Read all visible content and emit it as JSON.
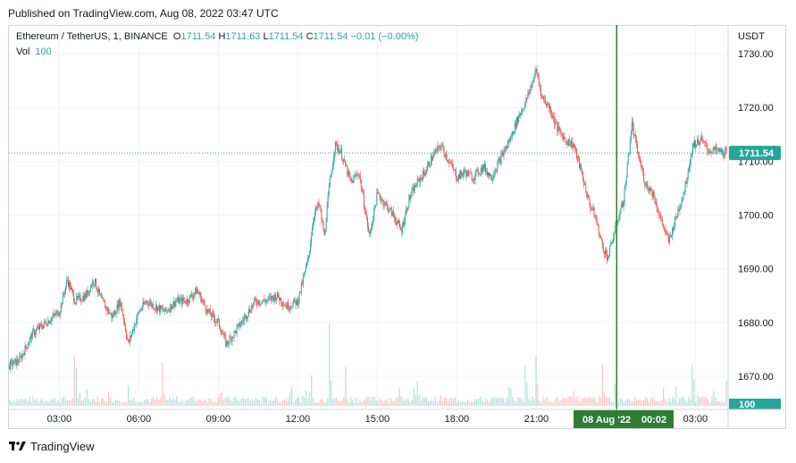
{
  "published": "Published on TradingView.com, Aug 08, 2022 03:47 UTC",
  "legend": {
    "symbol": "Ethereum / TetherUS, 1, BINANCE",
    "o_label": "O",
    "o": "1711.54",
    "h_label": "H",
    "h": "1711.63",
    "l_label": "L",
    "l": "1711.54",
    "c_label": "C",
    "c": "1711.54",
    "change": "−0.01 (−0.00%)"
  },
  "vol": {
    "label": "Vol",
    "value": "100"
  },
  "currency": "USDT",
  "price_badge": "1711.54",
  "vol_badge": "100",
  "crosshair_label": {
    "date": "08 Aug '22",
    "time": "00:02"
  },
  "colors": {
    "up": "#26a69a",
    "down": "#ef5350",
    "crosshair": "#2e7d32",
    "grid": "#f0f3fa",
    "axis_text": "#131722"
  },
  "logo": {
    "icon": "tradingview-logo-icon",
    "text": "TradingView"
  },
  "chart_data": {
    "type": "candlestick",
    "symbol": "Ethereum / TetherUS",
    "interval": "1",
    "exchange": "BINANCE",
    "y_axis": {
      "unit": "USDT",
      "ticks": [
        1670,
        1680,
        1690,
        1700,
        1710,
        1720,
        1730
      ],
      "tick_labels": [
        "1670.00",
        "1680.00",
        "1690.00",
        "1700.00",
        "1710.00",
        "1720.00",
        "1730.00"
      ],
      "range": [
        1664,
        1735
      ]
    },
    "x_axis": {
      "ticks": [
        "03:00",
        "06:00",
        "09:00",
        "12:00",
        "15:00",
        "18:00",
        "21:00",
        "03:00"
      ],
      "tick_hours": [
        3,
        6,
        9,
        12,
        15,
        18,
        21,
        27
      ],
      "range_hours": [
        1.1,
        28.2
      ]
    },
    "last_price": 1711.54,
    "crosshair_hour": 24.03,
    "close_path": [
      [
        1.1,
        1672
      ],
      [
        1.5,
        1673
      ],
      [
        2,
        1678
      ],
      [
        2.5,
        1680
      ],
      [
        3,
        1682
      ],
      [
        3.3,
        1688
      ],
      [
        3.6,
        1684
      ],
      [
        4,
        1685
      ],
      [
        4.3,
        1688
      ],
      [
        4.6,
        1684
      ],
      [
        5,
        1681
      ],
      [
        5.3,
        1684
      ],
      [
        5.6,
        1676
      ],
      [
        6,
        1682
      ],
      [
        6.3,
        1684
      ],
      [
        6.6,
        1683
      ],
      [
        7,
        1682
      ],
      [
        7.4,
        1684
      ],
      [
        7.8,
        1684
      ],
      [
        8.2,
        1686
      ],
      [
        8.6,
        1682
      ],
      [
        9,
        1680
      ],
      [
        9.3,
        1676
      ],
      [
        9.6,
        1678
      ],
      [
        10,
        1681
      ],
      [
        10.4,
        1684
      ],
      [
        10.8,
        1684
      ],
      [
        11.2,
        1685
      ],
      [
        11.6,
        1683
      ],
      [
        12,
        1684
      ],
      [
        12.2,
        1688
      ],
      [
        12.4,
        1692
      ],
      [
        12.6,
        1700
      ],
      [
        12.8,
        1702
      ],
      [
        13,
        1696
      ],
      [
        13.2,
        1706
      ],
      [
        13.4,
        1713
      ],
      [
        13.6,
        1712
      ],
      [
        14,
        1706
      ],
      [
        14.3,
        1708
      ],
      [
        14.5,
        1702
      ],
      [
        14.7,
        1696
      ],
      [
        15,
        1704
      ],
      [
        15.3,
        1702
      ],
      [
        15.6,
        1700
      ],
      [
        15.9,
        1697
      ],
      [
        16.2,
        1703
      ],
      [
        16.5,
        1706
      ],
      [
        16.8,
        1708
      ],
      [
        17.1,
        1711
      ],
      [
        17.4,
        1713
      ],
      [
        17.7,
        1710
      ],
      [
        18,
        1707
      ],
      [
        18.3,
        1708
      ],
      [
        18.6,
        1707
      ],
      [
        19,
        1709
      ],
      [
        19.3,
        1707
      ],
      [
        19.6,
        1710
      ],
      [
        20,
        1714
      ],
      [
        20.3,
        1718
      ],
      [
        20.6,
        1721
      ],
      [
        21,
        1727
      ],
      [
        21.2,
        1722
      ],
      [
        21.5,
        1720
      ],
      [
        21.8,
        1716
      ],
      [
        22.1,
        1714
      ],
      [
        22.4,
        1713
      ],
      [
        22.7,
        1708
      ],
      [
        23,
        1702
      ],
      [
        23.2,
        1700
      ],
      [
        23.5,
        1694
      ],
      [
        23.7,
        1692
      ],
      [
        24,
        1698
      ],
      [
        24.3,
        1703
      ],
      [
        24.6,
        1717
      ],
      [
        24.8,
        1712
      ],
      [
        25.1,
        1706
      ],
      [
        25.4,
        1704
      ],
      [
        25.7,
        1699
      ],
      [
        26,
        1695
      ],
      [
        26.3,
        1700
      ],
      [
        26.6,
        1705
      ],
      [
        26.9,
        1713
      ],
      [
        27.2,
        1714
      ],
      [
        27.5,
        1712
      ],
      [
        27.8,
        1712
      ],
      [
        28.1,
        1711.54
      ]
    ],
    "volume_peaks": [
      [
        3.6,
        0.7
      ],
      [
        6.9,
        0.45
      ],
      [
        9.1,
        0.2
      ],
      [
        12.5,
        0.35
      ],
      [
        13.2,
        0.9
      ],
      [
        13.8,
        0.4
      ],
      [
        16.5,
        0.25
      ],
      [
        20.0,
        0.3
      ],
      [
        20.6,
        0.55
      ],
      [
        21.0,
        0.6
      ],
      [
        23.5,
        0.45
      ],
      [
        24.0,
        0.35
      ],
      [
        26.9,
        0.55
      ]
    ],
    "volume_axis_label": "100"
  }
}
